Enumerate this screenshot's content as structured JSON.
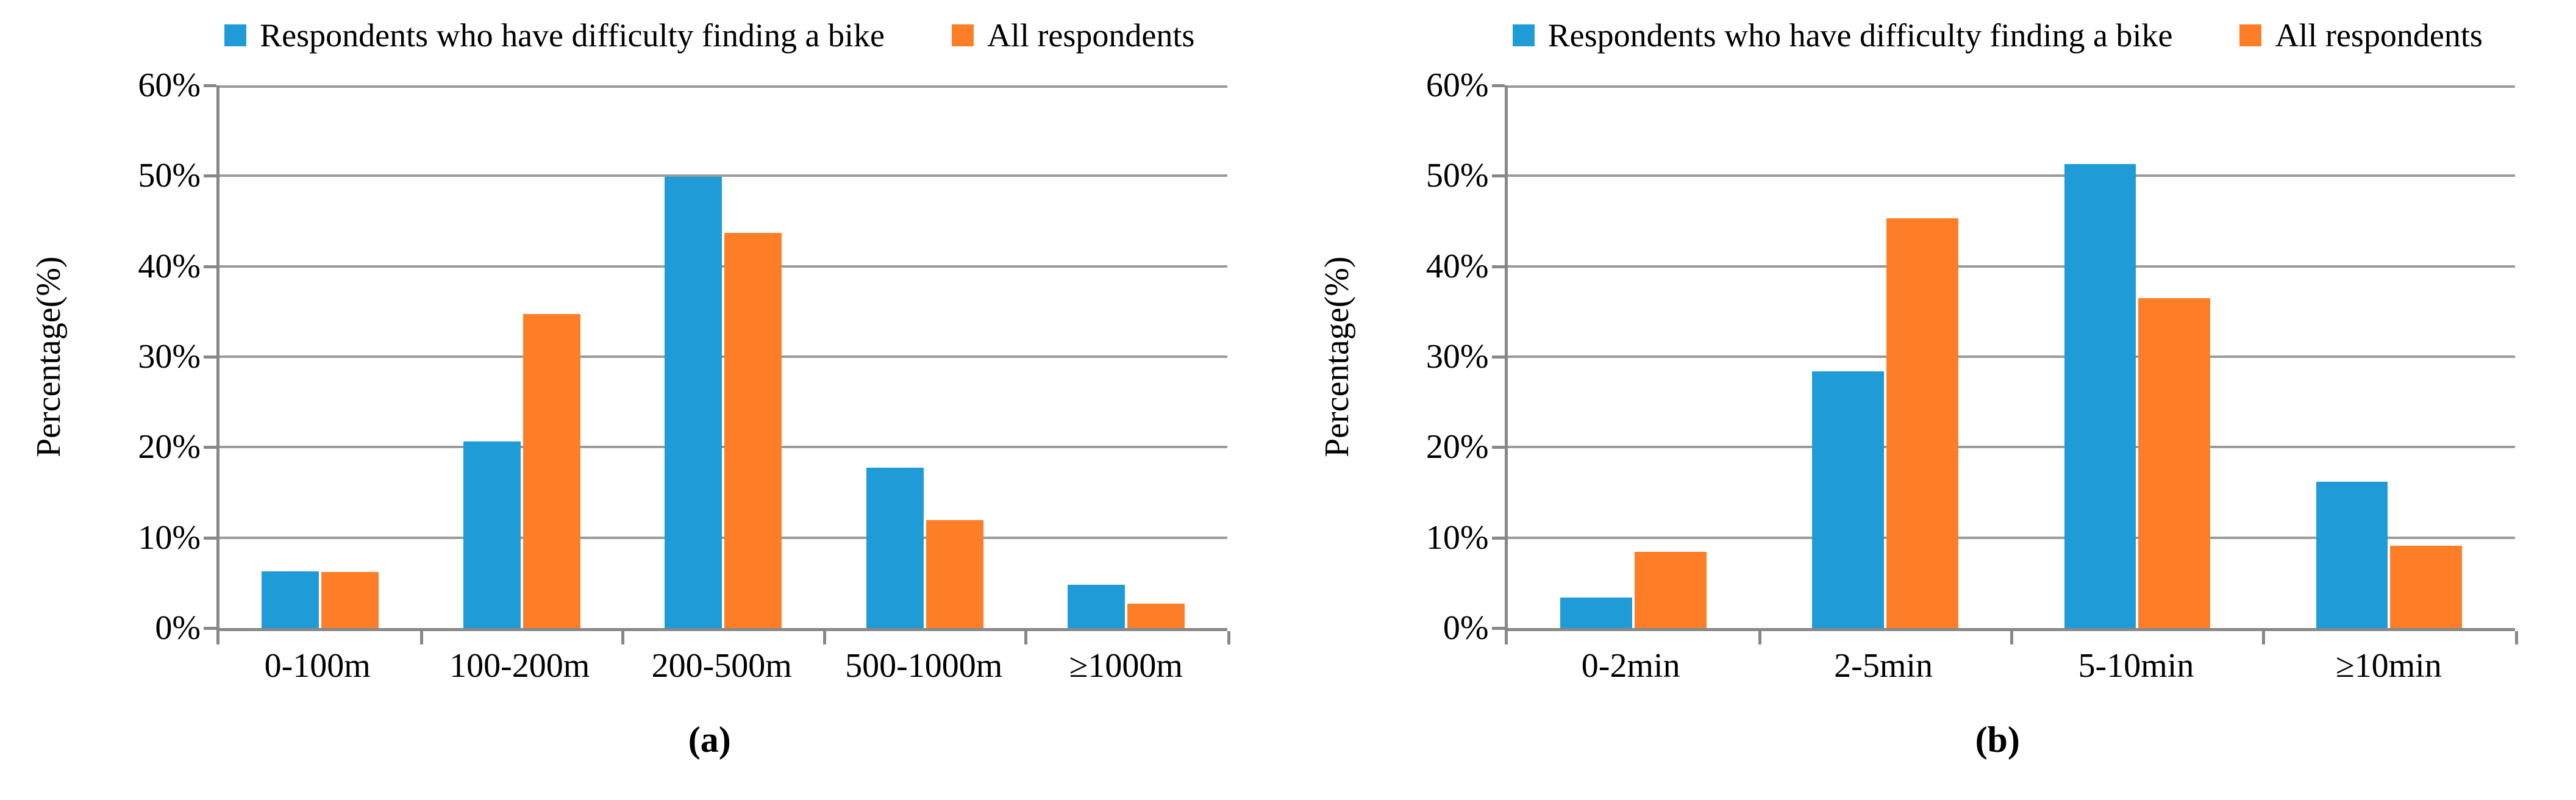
{
  "legend": {
    "items": [
      {
        "label": "Respondents who have difficulty finding a bike",
        "color": "#1f9cd7"
      },
      {
        "label": "All respondents",
        "color": "#fd7e27"
      }
    ]
  },
  "y_axis": {
    "label": "Percentage(%)",
    "ticks": [
      "60%",
      "50%",
      "40%",
      "30%",
      "20%",
      "10%",
      "0%"
    ],
    "min": 0,
    "max": 60,
    "unit": "%"
  },
  "colors": {
    "series1_blue": "#1f9cd7",
    "series2_orange": "#fd7e27",
    "gridline": "#9a9a9a",
    "axis": "#888888",
    "text": "#000000",
    "background": "#ffffff"
  },
  "chart_data": [
    {
      "type": "bar",
      "caption": "(a)",
      "categories": [
        "0-100m",
        "100-200m",
        "200-500m",
        "500-1000m",
        "≥1000m"
      ],
      "series": [
        {
          "name": "Respondents who have difficulty finding a bike",
          "color": "#1f9cd7",
          "values": [
            6.3,
            20.6,
            49.9,
            17.7,
            4.8
          ]
        },
        {
          "name": "All respondents",
          "color": "#fd7e27",
          "values": [
            6.2,
            34.7,
            43.7,
            11.9,
            2.7
          ]
        }
      ],
      "xlabel": "",
      "ylabel": "Percentage(%)",
      "ylim": [
        0,
        60
      ],
      "grid": true,
      "legend_position": "top"
    },
    {
      "type": "bar",
      "caption": "(b)",
      "categories": [
        "0-2min",
        "2-5min",
        "5-10min",
        "≥10min"
      ],
      "series": [
        {
          "name": "Respondents who have difficulty finding a bike",
          "color": "#1f9cd7",
          "values": [
            3.4,
            28.4,
            51.3,
            16.2
          ]
        },
        {
          "name": "All respondents",
          "color": "#fd7e27",
          "values": [
            8.4,
            45.3,
            36.5,
            9.1
          ]
        }
      ],
      "xlabel": "",
      "ylabel": "Percentage(%)",
      "ylim": [
        0,
        60
      ],
      "grid": true,
      "legend_position": "top"
    }
  ]
}
